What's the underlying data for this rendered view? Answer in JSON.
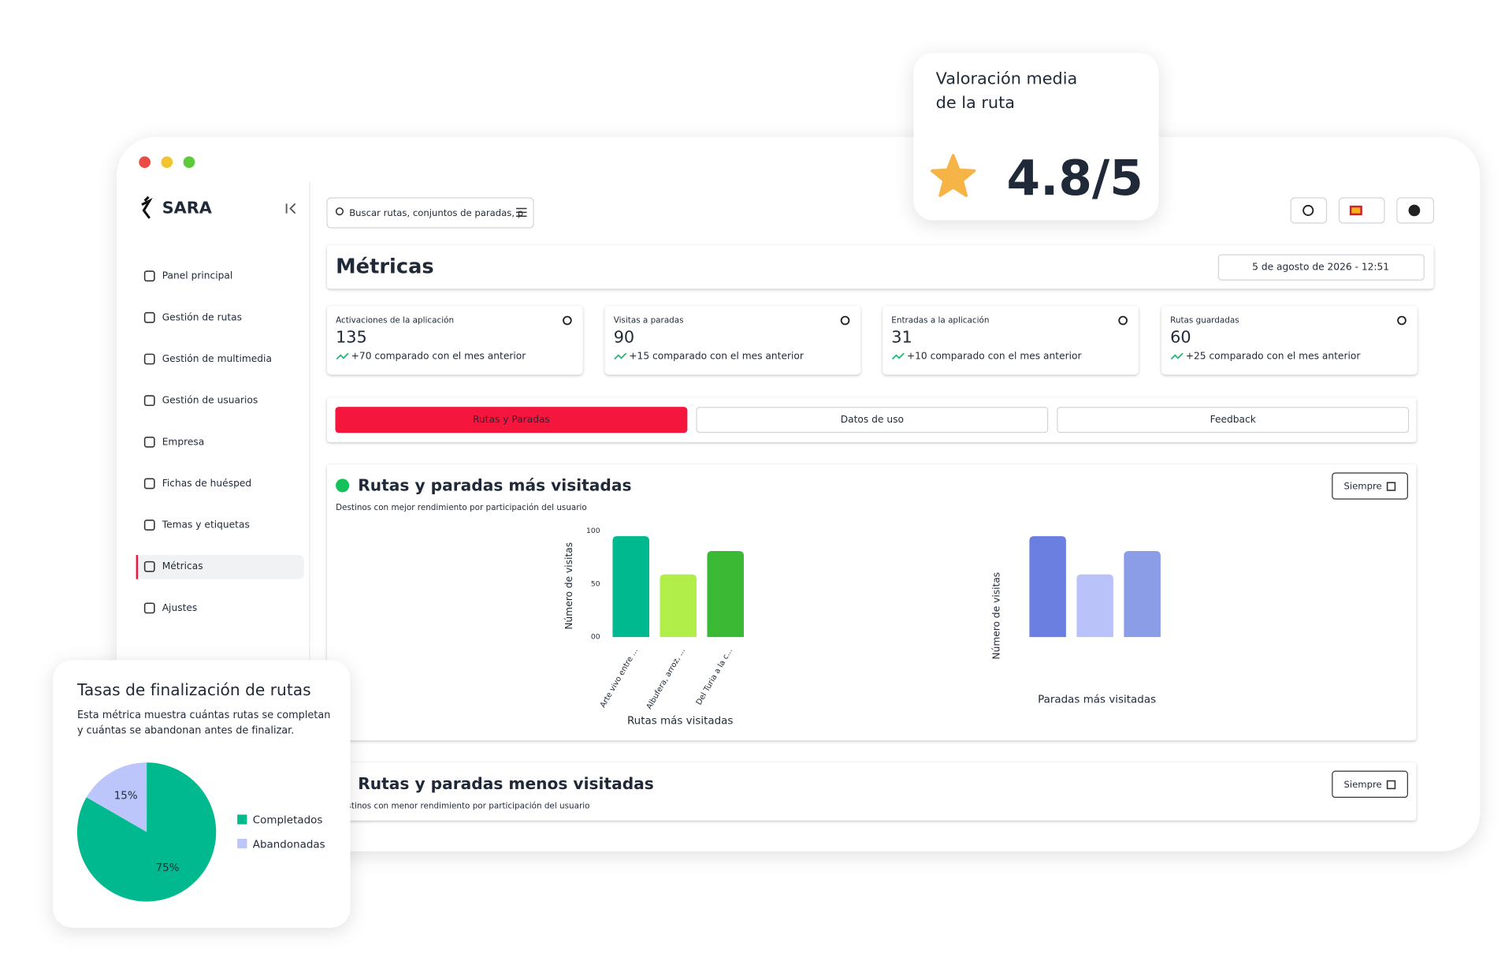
{
  "window": {
    "brand": "SARA"
  },
  "sidebar": {
    "items": [
      "Panel principal",
      "Gestión de rutas",
      "Gestión de multimedia",
      "Gestión de usuarios",
      "Empresa",
      "Fichas de huésped",
      "Temas y etiquetas",
      "Métricas",
      "Ajustes"
    ],
    "active": 7
  },
  "search": {
    "placeholder": "Buscar rutas, conjuntos de paradas, p"
  },
  "header": {
    "title": "Métricas",
    "date": "5 de agosto de 2026 - 12:51"
  },
  "stats": [
    {
      "label": "Activaciones de la aplicación",
      "value": 135,
      "trend": "+70 comparado con el mes anterior"
    },
    {
      "label": "Visitas a paradas",
      "value": 90,
      "trend": "+15 comparado con el mes anterior"
    },
    {
      "label": "Entradas a la aplicación",
      "value": 31,
      "trend": "+10 comparado con el mes anterior"
    },
    {
      "label": "Rutas guardadas",
      "value": 60,
      "trend": "+25 comparado con el mes anterior"
    }
  ],
  "tabs": {
    "items": [
      "Rutas y Paradas",
      "Datos de uso",
      "Feedback"
    ],
    "active": 0
  },
  "sections": [
    {
      "title": "Rutas y paradas más visitadas",
      "subtitle": "Destinos con mejor rendimiento por participación del usuario",
      "filter": "Siempre"
    },
    {
      "title": "Rutas y paradas menos visitadas",
      "subtitle": "Destinos con menor rendimiento por participación del usuario",
      "filter": "Siempre"
    }
  ],
  "rating": {
    "title_lines": [
      "Valoración media",
      "de la ruta"
    ],
    "value": "4.8/5"
  },
  "completion": {
    "title": "Tasas de finalización de rutas",
    "description_lines": [
      "Esta métrica muestra cuántas rutas se completan",
      "y cuántas se abandonan antes de finalizar."
    ]
  },
  "chart_data": [
    {
      "type": "bar",
      "categories": [
        "Arte vivo entre ...",
        "Albufera, arroz, ...",
        "Del Turia a la c..."
      ],
      "values": [
        95,
        59,
        81
      ],
      "colors": [
        "#00b98e",
        "#b2ee4a",
        "#3bb935"
      ],
      "ylabel": "Número de visitas",
      "xlabel": "Rutas más visitadas",
      "ylim": [
        0,
        100
      ],
      "yticks": [
        {
          "value": 0,
          "label": "00"
        },
        50,
        100
      ]
    },
    {
      "type": "bar",
      "values": [
        95,
        59,
        81
      ],
      "colors": [
        "#6b7fe0",
        "#b9c3fa",
        "#8b9de6"
      ],
      "ylabel": "Número de visitas",
      "xlabel": "Paradas más visitadas",
      "ylim": [
        0,
        100
      ]
    },
    {
      "type": "pie",
      "categories": [
        "Completados",
        "Abandonadas"
      ],
      "values": [
        75,
        15
      ],
      "value_labels": [
        "75%",
        "15%"
      ],
      "colors": [
        "#00b98e",
        "#bcc6fb"
      ]
    }
  ]
}
